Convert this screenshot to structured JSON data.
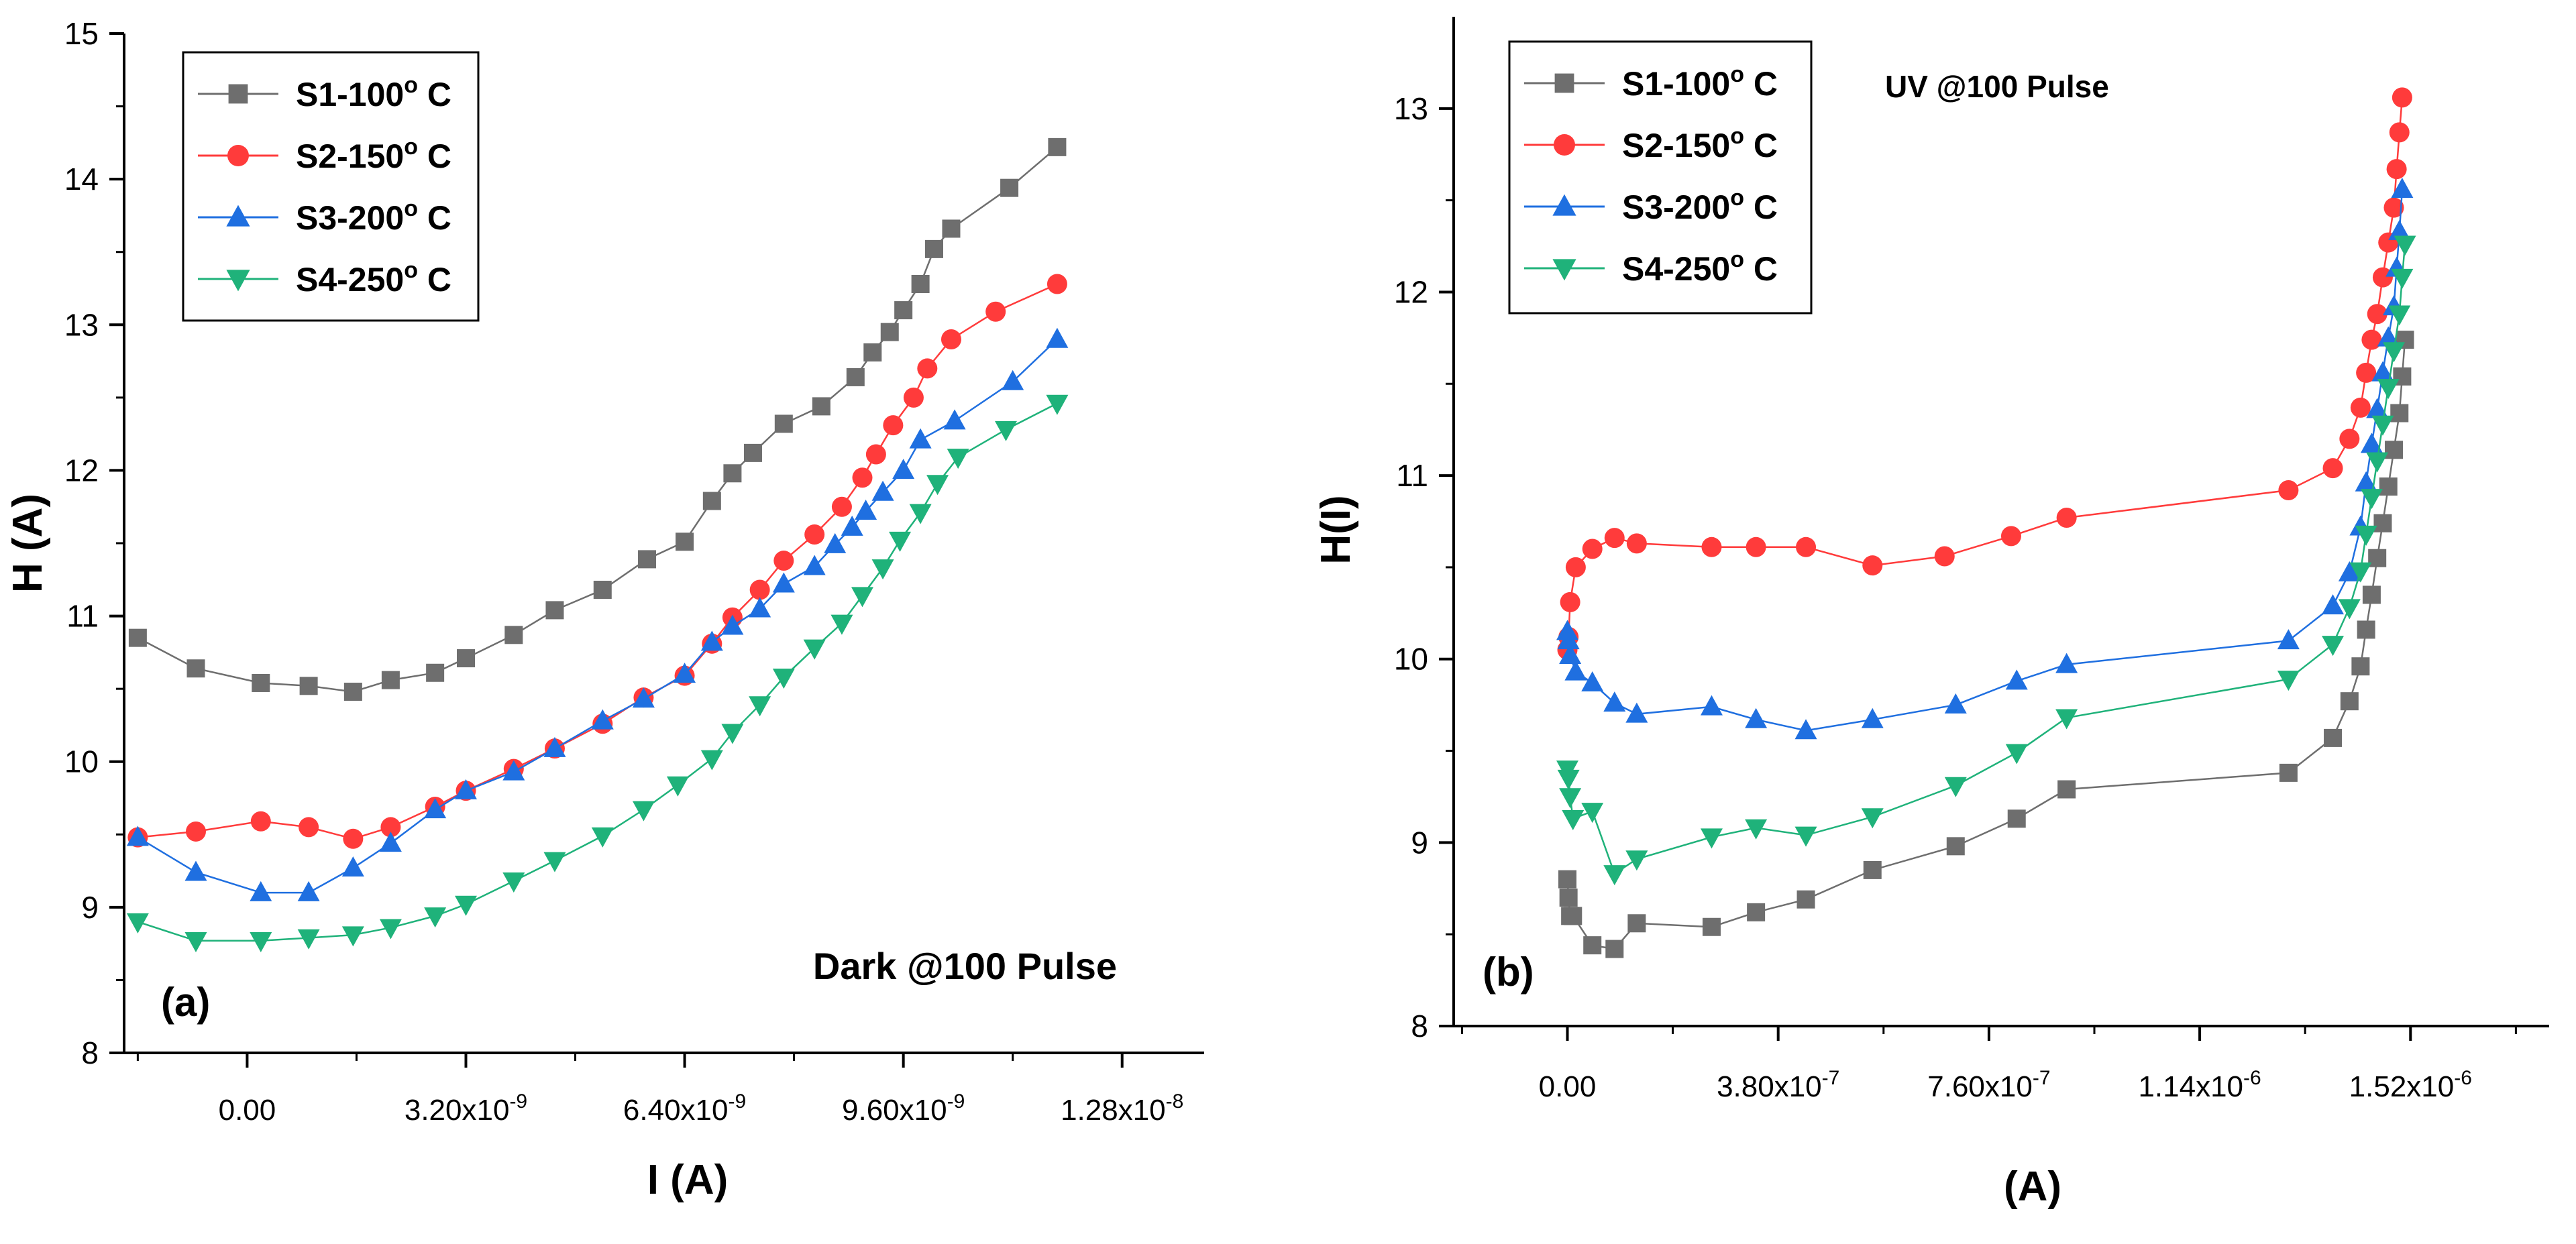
{
  "colors": {
    "S1": "#6e6e6e",
    "S2": "#ff3b3b",
    "S3": "#1f6fe0",
    "S4": "#1fb27a",
    "axis": "#000000",
    "background": "#ffffff"
  },
  "chart_data": [
    {
      "type": "line",
      "panel_label": "(a)",
      "annotation": "Dark @100 Pulse",
      "xlabel": "I (A)",
      "ylabel": "H (A)",
      "xlim": [
        -1.8e-09,
        1.4e-08
      ],
      "ylim": [
        8,
        15
      ],
      "xticks": [
        {
          "value": 0,
          "mantissa": "0.00",
          "exponent": ""
        },
        {
          "value": 3.2e-09,
          "mantissa": "3.20x10",
          "exponent": "-9"
        },
        {
          "value": 6.4e-09,
          "mantissa": "6.40x10",
          "exponent": "-9"
        },
        {
          "value": 9.6e-09,
          "mantissa": "9.60x10",
          "exponent": "-9"
        },
        {
          "value": 1.28e-08,
          "mantissa": "1.28x10",
          "exponent": "-8"
        }
      ],
      "yticks": [
        8,
        9,
        10,
        11,
        12,
        13,
        14,
        15
      ],
      "legend_position": "top-left",
      "series": [
        {
          "name": "S1-100",
          "unit": "o",
          "unit_suffix": " C",
          "color_key": "S1",
          "marker": "square",
          "x": [
            -1.6e-09,
            -7.5e-10,
            2e-10,
            9e-10,
            1.55e-09,
            2.1e-09,
            2.75e-09,
            3.2e-09,
            3.9e-09,
            4.5e-09,
            5.2e-09,
            5.85e-09,
            6.4e-09,
            6.8e-09,
            7.1e-09,
            7.4e-09,
            7.85e-09,
            8.4e-09,
            8.9e-09,
            9.15e-09,
            9.4e-09,
            9.6e-09,
            9.85e-09,
            1.005e-08,
            1.03e-08,
            1.115e-08,
            1.185e-08
          ],
          "y": [
            10.85,
            10.64,
            10.54,
            10.52,
            10.48,
            10.56,
            10.61,
            10.71,
            10.87,
            11.04,
            11.18,
            11.39,
            11.51,
            11.79,
            11.98,
            12.12,
            12.32,
            12.44,
            12.64,
            12.81,
            12.95,
            13.1,
            13.28,
            13.52,
            13.66,
            13.94,
            14.22
          ]
        },
        {
          "name": "S2-150",
          "unit": "o",
          "unit_suffix": " C",
          "color_key": "S2",
          "marker": "circle",
          "x": [
            -1.6e-09,
            -7.5e-10,
            2e-10,
            9e-10,
            1.55e-09,
            2.1e-09,
            2.75e-09,
            3.2e-09,
            3.9e-09,
            4.5e-09,
            5.2e-09,
            5.8e-09,
            6.4e-09,
            6.8e-09,
            7.1e-09,
            7.5e-09,
            7.85e-09,
            8.3e-09,
            8.7e-09,
            9e-09,
            9.2e-09,
            9.45e-09,
            9.75e-09,
            9.95e-09,
            1.03e-08,
            1.095e-08,
            1.185e-08
          ],
          "y": [
            9.48,
            9.52,
            9.59,
            9.55,
            9.47,
            9.55,
            9.69,
            9.8,
            9.95,
            10.09,
            10.26,
            10.44,
            10.59,
            10.81,
            10.99,
            11.18,
            11.38,
            11.56,
            11.75,
            11.95,
            12.11,
            12.31,
            12.5,
            12.7,
            12.9,
            13.09,
            13.28
          ]
        },
        {
          "name": "S3-200",
          "unit": "o",
          "unit_suffix": " C",
          "color_key": "S3",
          "marker": "triangle-up",
          "x": [
            -1.6e-09,
            -7.5e-10,
            2e-10,
            9e-10,
            1.55e-09,
            2.1e-09,
            2.75e-09,
            3.2e-09,
            3.9e-09,
            4.5e-09,
            5.2e-09,
            5.8e-09,
            6.4e-09,
            6.8e-09,
            7.1e-09,
            7.5e-09,
            7.85e-09,
            8.3e-09,
            8.6e-09,
            8.85e-09,
            9.05e-09,
            9.3e-09,
            9.6e-09,
            9.85e-09,
            1.035e-08,
            1.12e-08,
            1.185e-08
          ],
          "y": [
            9.48,
            9.24,
            9.1,
            9.1,
            9.27,
            9.44,
            9.67,
            9.8,
            9.93,
            10.09,
            10.28,
            10.43,
            10.6,
            10.82,
            10.93,
            11.05,
            11.22,
            11.34,
            11.49,
            11.61,
            11.72,
            11.85,
            12.0,
            12.21,
            12.34,
            12.61,
            12.9
          ]
        },
        {
          "name": "S4-250",
          "unit": "o",
          "unit_suffix": " C",
          "color_key": "S4",
          "marker": "triangle-down",
          "x": [
            -1.6e-09,
            -7.5e-10,
            2e-10,
            9e-10,
            1.55e-09,
            2.1e-09,
            2.75e-09,
            3.2e-09,
            3.9e-09,
            4.5e-09,
            5.2e-09,
            5.8e-09,
            6.3e-09,
            6.8e-09,
            7.1e-09,
            7.5e-09,
            7.85e-09,
            8.3e-09,
            8.7e-09,
            9e-09,
            9.3e-09,
            9.55e-09,
            9.85e-09,
            1.01e-08,
            1.04e-08,
            1.11e-08,
            1.185e-08
          ],
          "y": [
            8.9,
            8.77,
            8.77,
            8.79,
            8.81,
            8.86,
            8.94,
            9.02,
            9.18,
            9.32,
            9.49,
            9.67,
            9.84,
            10.02,
            10.2,
            10.39,
            10.58,
            10.78,
            10.95,
            11.14,
            11.33,
            11.52,
            11.71,
            11.91,
            12.09,
            12.28,
            12.46
          ]
        }
      ]
    },
    {
      "type": "line",
      "panel_label": "(b)",
      "annotation": "UV @100 Pulse",
      "xlabel": "(A)",
      "ylabel": "H(I)",
      "xlim": [
        -2.05e-07,
        1.77e-06
      ],
      "ylim": [
        8,
        13.5
      ],
      "xticks": [
        {
          "value": 0,
          "mantissa": "0.00",
          "exponent": ""
        },
        {
          "value": 3.8e-07,
          "mantissa": "3.80x10",
          "exponent": "-7"
        },
        {
          "value": 7.6e-07,
          "mantissa": "7.60x10",
          "exponent": "-7"
        },
        {
          "value": 1.14e-06,
          "mantissa": "1.14x10",
          "exponent": "-6"
        },
        {
          "value": 1.52e-06,
          "mantissa": "1.52x10",
          "exponent": "-6"
        }
      ],
      "yticks": [
        8,
        9,
        10,
        11,
        12,
        13
      ],
      "legend_position": "top-left",
      "series": [
        {
          "name": "S1-100",
          "unit": "o",
          "unit_suffix": " C",
          "color_key": "S1",
          "marker": "square",
          "x": [
            0,
            2e-09,
            5e-09,
            1e-08,
            4.5e-08,
            8.5e-08,
            1.25e-07,
            2.6e-07,
            3.4e-07,
            4.3e-07,
            5.5e-07,
            7e-07,
            8.1e-07,
            9e-07,
            1.3e-06,
            1.38e-06,
            1.41e-06,
            1.43e-06,
            1.44e-06,
            1.45e-06,
            1.46e-06,
            1.47e-06,
            1.48e-06,
            1.49e-06,
            1.5e-06,
            1.505e-06,
            1.51e-06
          ],
          "y": [
            8.8,
            8.7,
            8.6,
            8.6,
            8.44,
            8.42,
            8.56,
            8.54,
            8.62,
            8.69,
            8.85,
            8.98,
            9.13,
            9.29,
            9.38,
            9.57,
            9.77,
            9.96,
            10.16,
            10.35,
            10.55,
            10.74,
            10.94,
            11.14,
            11.34,
            11.54,
            11.74
          ]
        },
        {
          "name": "S2-150",
          "unit": "o",
          "unit_suffix": " C",
          "color_key": "S2",
          "marker": "circle",
          "x": [
            0,
            2e-09,
            5e-09,
            1.5e-08,
            4.5e-08,
            8.5e-08,
            1.25e-07,
            2.6e-07,
            3.4e-07,
            4.3e-07,
            5.5e-07,
            6.8e-07,
            8e-07,
            9e-07,
            1.3e-06,
            1.38e-06,
            1.41e-06,
            1.43e-06,
            1.44e-06,
            1.45e-06,
            1.46e-06,
            1.47e-06,
            1.48e-06,
            1.49e-06,
            1.495e-06,
            1.5e-06,
            1.505e-06
          ],
          "y": [
            10.05,
            10.12,
            10.31,
            10.5,
            10.6,
            10.66,
            10.63,
            10.61,
            10.61,
            10.61,
            10.51,
            10.56,
            10.67,
            10.77,
            10.92,
            11.04,
            11.2,
            11.37,
            11.56,
            11.74,
            11.88,
            12.08,
            12.27,
            12.46,
            12.67,
            12.87,
            13.06
          ]
        },
        {
          "name": "S3-200",
          "unit": "o",
          "unit_suffix": " C",
          "color_key": "S3",
          "marker": "triangle-up",
          "x": [
            0,
            2e-09,
            5e-09,
            1.5e-08,
            4.5e-08,
            8.5e-08,
            1.25e-07,
            2.6e-07,
            3.4e-07,
            4.3e-07,
            5.5e-07,
            7e-07,
            8.1e-07,
            9e-07,
            1.3e-06,
            1.38e-06,
            1.41e-06,
            1.43e-06,
            1.44e-06,
            1.45e-06,
            1.46e-06,
            1.47e-06,
            1.48e-06,
            1.49e-06,
            1.495e-06,
            1.5e-06,
            1.505e-06
          ],
          "y": [
            10.15,
            10.1,
            10.02,
            9.93,
            9.87,
            9.76,
            9.7,
            9.74,
            9.67,
            9.61,
            9.67,
            9.75,
            9.88,
            9.97,
            10.1,
            10.29,
            10.47,
            10.72,
            10.96,
            11.17,
            11.36,
            11.56,
            11.75,
            11.92,
            12.13,
            12.33,
            12.56
          ]
        },
        {
          "name": "S4-250",
          "unit": "o",
          "unit_suffix": " C",
          "color_key": "S4",
          "marker": "triangle-down",
          "x": [
            0,
            2e-09,
            5e-09,
            1e-08,
            4.5e-08,
            8.5e-08,
            1.25e-07,
            2.6e-07,
            3.4e-07,
            4.3e-07,
            5.5e-07,
            7e-07,
            8.1e-07,
            9e-07,
            1.3e-06,
            1.38e-06,
            1.41e-06,
            1.43e-06,
            1.44e-06,
            1.45e-06,
            1.46e-06,
            1.47e-06,
            1.48e-06,
            1.49e-06,
            1.5e-06,
            1.505e-06,
            1.51e-06
          ],
          "y": [
            9.4,
            9.35,
            9.25,
            9.13,
            9.17,
            8.83,
            8.91,
            9.03,
            9.08,
            9.04,
            9.14,
            9.31,
            9.49,
            9.68,
            9.89,
            10.08,
            10.28,
            10.48,
            10.68,
            10.88,
            11.08,
            11.28,
            11.48,
            11.68,
            11.88,
            12.08,
            12.26
          ]
        }
      ]
    }
  ]
}
